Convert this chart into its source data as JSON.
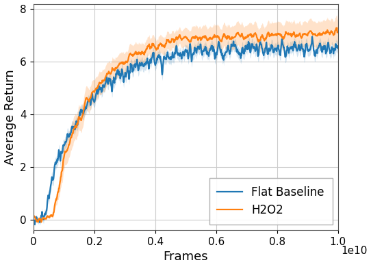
{
  "xlabel": "Frames",
  "ylabel": "Average Return",
  "xlim": [
    0,
    10000000000.0
  ],
  "ylim": [
    -0.4,
    8.2
  ],
  "xticks": [
    0,
    2000000000.0,
    4000000000.0,
    6000000000.0,
    8000000000.0,
    10000000000.0
  ],
  "yticks": [
    0,
    2,
    4,
    6,
    8
  ],
  "xtick_labels": [
    "0",
    "0.2",
    "0.4",
    "0.6",
    "0.8",
    "1.0"
  ],
  "ytick_labels": [
    "0",
    "2",
    "4",
    "6",
    "8"
  ],
  "blue_color": "#1f77b4",
  "orange_color": "#ff7f0e",
  "blue_fill_alpha": 0.2,
  "orange_fill_alpha": 0.22,
  "legend_labels": [
    "Flat Baseline",
    "H2O2"
  ],
  "legend_loc": "lower right",
  "figsize": [
    5.42,
    3.9
  ],
  "dpi": 100,
  "grid_color": "#cccccc",
  "grid_linewidth": 0.8,
  "tick_fontsize": 11,
  "label_fontsize": 13,
  "legend_fontsize": 12,
  "offset_text": "1e10"
}
